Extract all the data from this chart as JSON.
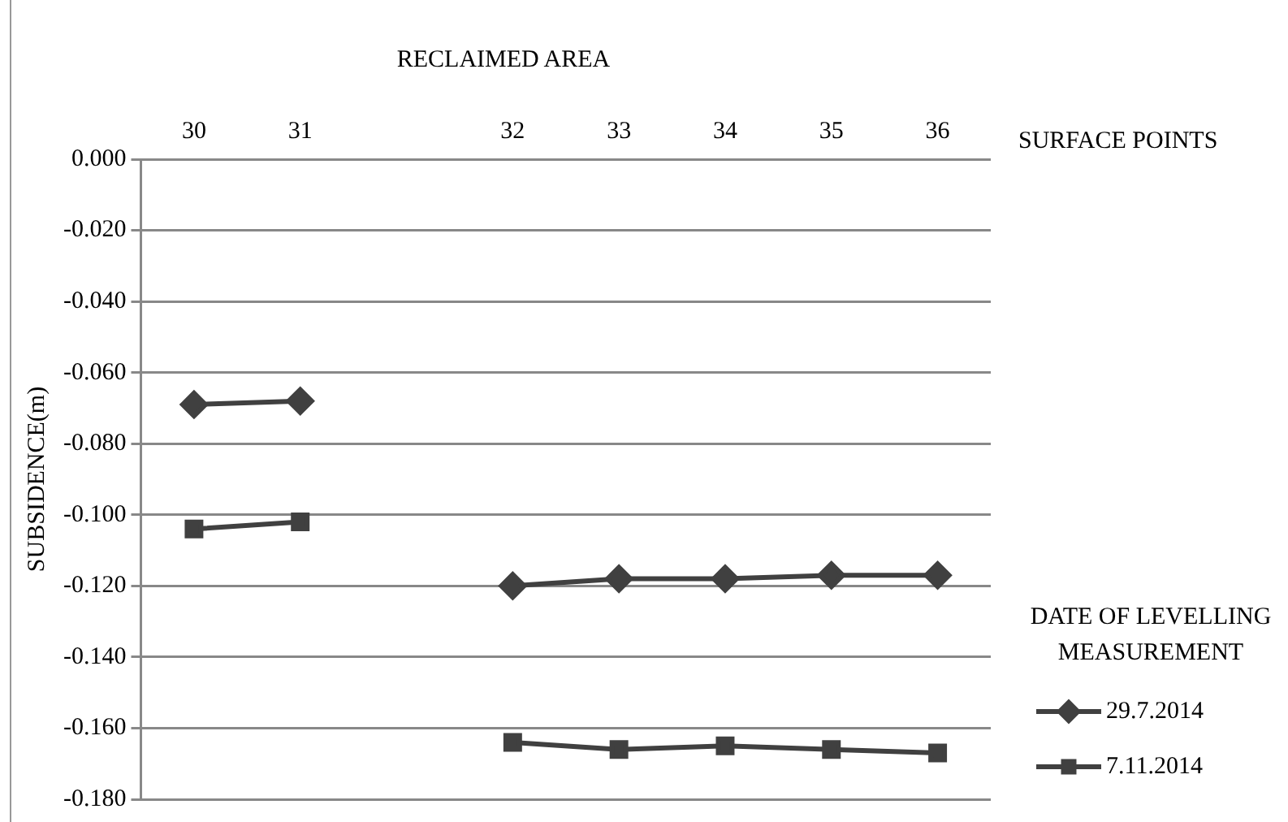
{
  "chart_data": {
    "type": "line",
    "title": "RECLAIMED AREA",
    "xlabel": "SURFACE POINTS",
    "ylabel": "SUBSIDENCE(m)",
    "legend_title": "DATE OF LEVELLING MEASUREMENT",
    "legend": "right",
    "grid": "y",
    "line_style": "solid",
    "categories": [
      "30",
      "31",
      null,
      "32",
      "33",
      "34",
      "35",
      "36"
    ],
    "series": [
      {
        "name": "29.7.2014",
        "color": "#404040",
        "marker": "diamond",
        "values": [
          -0.069,
          -0.068,
          null,
          -0.12,
          -0.118,
          -0.118,
          -0.117,
          -0.117
        ]
      },
      {
        "name": "7.11.2014",
        "color": "#404040",
        "marker": "square",
        "values": [
          -0.104,
          -0.102,
          null,
          -0.164,
          -0.166,
          -0.165,
          -0.166,
          -0.167
        ]
      }
    ],
    "ylim": [
      -0.18,
      0
    ],
    "yticks": [
      {
        "value": 0,
        "label": "0.000"
      },
      {
        "value": -0.02,
        "label": "-0.020"
      },
      {
        "value": -0.04,
        "label": "-0.040"
      },
      {
        "value": -0.06,
        "label": "-0.060"
      },
      {
        "value": -0.08,
        "label": "-0.080"
      },
      {
        "value": -0.1,
        "label": "-0.100"
      },
      {
        "value": -0.12,
        "label": "-0.120"
      },
      {
        "value": -0.14,
        "label": "-0.140"
      },
      {
        "value": -0.16,
        "label": "-0.160"
      },
      {
        "value": -0.18,
        "label": "-0.180"
      }
    ]
  }
}
